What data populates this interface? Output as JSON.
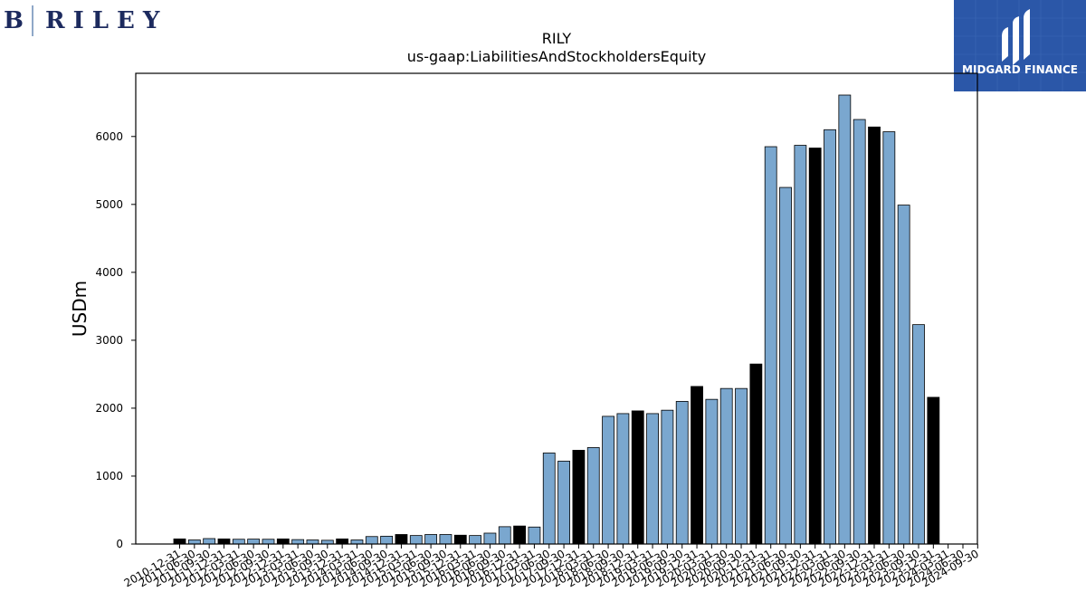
{
  "logos": {
    "left_brand": "B RILEY",
    "left_brand_color": "#1c2a5e",
    "right_brand": "MIDGARD FINANCE",
    "right_brand_color": "#2b57a8"
  },
  "chart_data": {
    "type": "bar",
    "title": "RILY",
    "subtitle": "us-gaap:LiabilitiesAndStockholdersEquity",
    "xlabel": "",
    "ylabel": "USDm",
    "ylim": [
      0,
      6930
    ],
    "yticks": [
      0,
      1000,
      2000,
      3000,
      4000,
      5000,
      6000
    ],
    "grid": false,
    "colors": {
      "annual": "#000000",
      "quarterly": "#7aa7cf",
      "edge": "#000000"
    },
    "categories": [
      "2010-12-31",
      "2011-06-30",
      "2011-09-30",
      "2011-12-31",
      "2012-03-31",
      "2012-06-30",
      "2012-09-30",
      "2012-12-31",
      "2013-03-31",
      "2013-06-30",
      "2013-09-30",
      "2013-12-31",
      "2014-03-31",
      "2014-06-30",
      "2014-09-30",
      "2014-12-31",
      "2015-03-31",
      "2015-06-30",
      "2015-09-30",
      "2015-12-31",
      "2016-03-31",
      "2016-06-30",
      "2016-09-30",
      "2016-12-31",
      "2017-03-31",
      "2017-06-30",
      "2017-09-30",
      "2017-12-31",
      "2018-03-31",
      "2018-06-30",
      "2018-09-30",
      "2018-12-31",
      "2019-03-31",
      "2019-06-30",
      "2019-09-30",
      "2019-12-31",
      "2020-03-31",
      "2020-06-30",
      "2020-09-30",
      "2020-12-31",
      "2021-03-31",
      "2021-06-30",
      "2021-09-30",
      "2021-12-31",
      "2022-03-31",
      "2022-06-30",
      "2022-09-30",
      "2022-12-31",
      "2023-03-31",
      "2023-06-30",
      "2023-09-30",
      "2023-12-31",
      "2024-03-31",
      "2024-06-30",
      "2024-09-30"
    ],
    "series": [
      {
        "values": [
          75,
          60,
          80,
          75,
          70,
          72,
          70,
          75,
          65,
          60,
          55,
          75,
          60,
          110,
          115,
          140,
          125,
          140,
          140,
          130,
          125,
          160,
          255,
          265,
          250,
          1340,
          1220,
          1380,
          1420,
          1880,
          1920,
          1960,
          1920,
          1970,
          2100,
          2320,
          2130,
          2290,
          2290,
          2650,
          5850,
          5250,
          5870,
          5830,
          6100,
          6610,
          6250,
          6140,
          6070,
          4990,
          3230,
          2160,
          0,
          0,
          0
        ]
      }
    ]
  }
}
